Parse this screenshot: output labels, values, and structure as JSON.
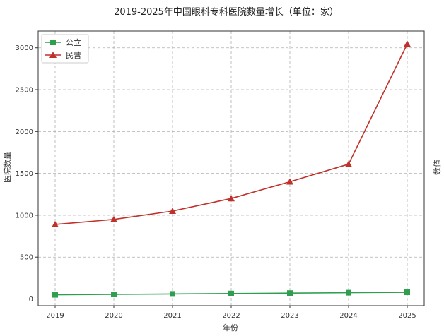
{
  "chart_data": {
    "type": "line",
    "title": "2019-2025年中国眼科专科医院数量增长（单位：家）",
    "xlabel": "年份",
    "ylabel": "医院数量",
    "ylabel_right": "数值",
    "categories": [
      "2019",
      "2020",
      "2021",
      "2022",
      "2023",
      "2024",
      "2025"
    ],
    "yticks": [
      0,
      500,
      1000,
      1500,
      2000,
      2500,
      3000
    ],
    "ylim": [
      -80,
      3200
    ],
    "grid": true,
    "legend_position": "top-left",
    "series": [
      {
        "name": "公立",
        "values": [
          50,
          55,
          60,
          65,
          70,
          75,
          80
        ],
        "color": "#2e9e4f",
        "marker": "square"
      },
      {
        "name": "民营",
        "values": [
          890,
          950,
          1050,
          1200,
          1400,
          1610,
          3045
        ],
        "color": "#c0312b",
        "marker": "triangle"
      }
    ]
  }
}
